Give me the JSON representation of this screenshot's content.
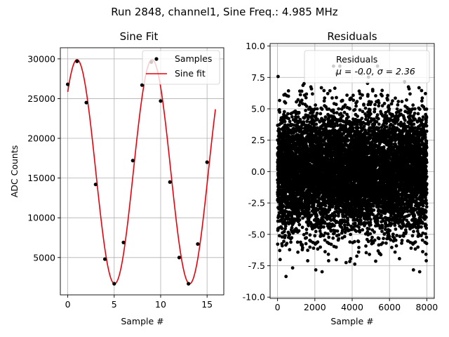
{
  "suptitle": "Run 2848, channel1, Sine Freq.: 4.985 MHz",
  "chart_data": [
    {
      "type": "line",
      "title": "Sine Fit",
      "xlabel": "Sample #",
      "ylabel": "ADC Counts",
      "xlim": [
        -0.8,
        16.8
      ],
      "ylim": [
        300,
        31400
      ],
      "xticks": [
        0,
        5,
        10,
        15
      ],
      "yticks": [
        5000,
        10000,
        15000,
        20000,
        25000,
        30000
      ],
      "grid": true,
      "legend": {
        "placement": "top-right",
        "entries": [
          "Samples",
          "Sine fit"
        ]
      },
      "samples": {
        "name": "Samples",
        "x": [
          0,
          1,
          2,
          3,
          4,
          5,
          6,
          7,
          8,
          9,
          10,
          11,
          12,
          13,
          14,
          15
        ],
        "y": [
          26800,
          29700,
          24500,
          14200,
          4800,
          1700,
          6900,
          17200,
          26700,
          29600,
          24700,
          14500,
          5000,
          1700,
          6700,
          17000
        ]
      },
      "fit": {
        "name": "Sine fit",
        "offset": 15800,
        "amplitude": 14100,
        "period": 8.08,
        "peak_x": 1.0,
        "x_range": [
          0,
          15.9
        ]
      },
      "colors": {
        "samples": "#000000",
        "fit": "#e8000b"
      }
    },
    {
      "type": "scatter",
      "title": "Residuals",
      "xlabel": "Sample #",
      "ylabel": "",
      "xlim": [
        -400,
        8400
      ],
      "ylim": [
        -10.1,
        10.2
      ],
      "xticks": [
        0,
        2000,
        4000,
        6000,
        8000
      ],
      "yticks": [
        -10.0,
        -7.5,
        -5.0,
        -2.5,
        0.0,
        2.5,
        5.0,
        7.5,
        10.0
      ],
      "grid": true,
      "n_points": 8000,
      "sigma": 2.36,
      "mu": -0.0,
      "legend": {
        "placement": "top-right",
        "label": "Residuals",
        "stats": "μ = -0.0, σ = 2.36"
      },
      "colors": {
        "points": "#000000"
      }
    }
  ]
}
